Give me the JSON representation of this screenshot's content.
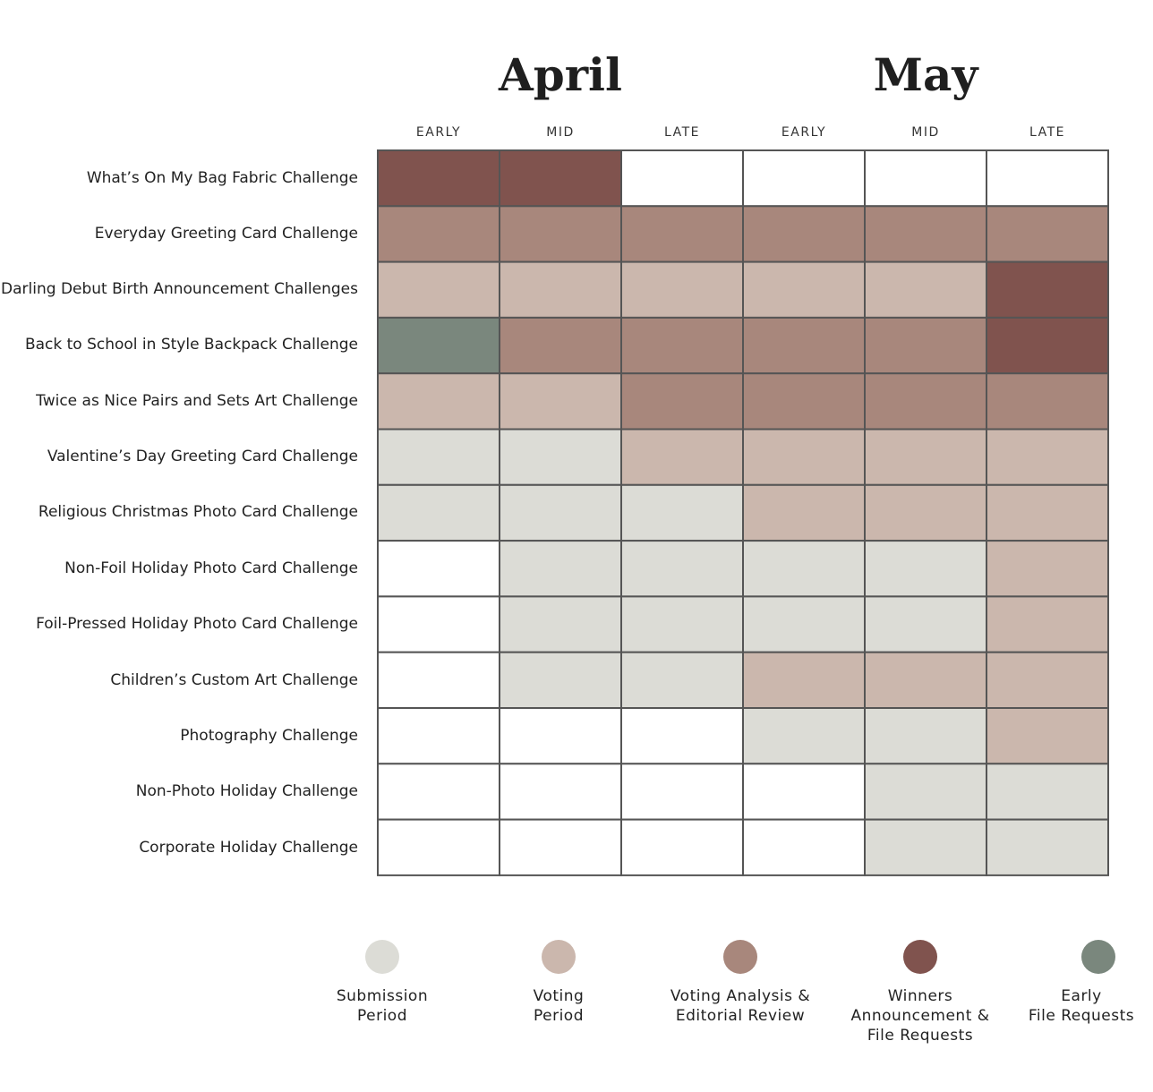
{
  "months": [
    "April",
    "May"
  ],
  "periods": [
    "EARLY",
    "MID",
    "LATE",
    "EARLY",
    "MID",
    "LATE"
  ],
  "colors": {
    "none": "#ffffff",
    "submission": "#dcdcd6",
    "voting": "#cbb7ad",
    "analysis": "#a8877c",
    "winners": "#80534e",
    "early": "#7a877d",
    "gridline": "#555555"
  },
  "chart_data": {
    "type": "heatmap",
    "columns": [
      "April Early",
      "April Mid",
      "April Late",
      "May Early",
      "May Mid",
      "May Late"
    ],
    "rows": [
      {
        "label": "What’s On My Bag Fabric Challenge",
        "states": [
          "winners",
          "winners",
          "none",
          "none",
          "none",
          "none"
        ]
      },
      {
        "label": "Everyday Greeting Card Challenge",
        "states": [
          "analysis",
          "analysis",
          "analysis",
          "analysis",
          "analysis",
          "analysis"
        ]
      },
      {
        "label": "Darling Debut Birth Announcement Challenges",
        "states": [
          "voting",
          "voting",
          "voting",
          "voting",
          "voting",
          "winners"
        ]
      },
      {
        "label": "Back to School in Style Backpack Challenge",
        "states": [
          "early",
          "analysis",
          "analysis",
          "analysis",
          "analysis",
          "winners"
        ]
      },
      {
        "label": "Twice as Nice Pairs and Sets Art Challenge",
        "states": [
          "voting",
          "voting",
          "analysis",
          "analysis",
          "analysis",
          "analysis"
        ]
      },
      {
        "label": "Valentine’s Day Greeting Card Challenge",
        "states": [
          "submission",
          "submission",
          "voting",
          "voting",
          "voting",
          "voting"
        ]
      },
      {
        "label": "Religious Christmas Photo Card Challenge",
        "states": [
          "submission",
          "submission",
          "submission",
          "voting",
          "voting",
          "voting"
        ]
      },
      {
        "label": "Non-Foil Holiday Photo Card Challenge",
        "states": [
          "none",
          "submission",
          "submission",
          "submission",
          "submission",
          "voting"
        ]
      },
      {
        "label": "Foil-Pressed Holiday Photo Card Challenge",
        "states": [
          "none",
          "submission",
          "submission",
          "submission",
          "submission",
          "voting"
        ]
      },
      {
        "label": "Children’s Custom Art Challenge",
        "states": [
          "none",
          "submission",
          "submission",
          "voting",
          "voting",
          "voting"
        ]
      },
      {
        "label": "Photography Challenge",
        "states": [
          "none",
          "none",
          "none",
          "submission",
          "submission",
          "voting"
        ]
      },
      {
        "label": "Non-Photo Holiday Challenge",
        "states": [
          "none",
          "none",
          "none",
          "none",
          "submission",
          "submission"
        ]
      },
      {
        "label": "Corporate Holiday Challenge",
        "states": [
          "none",
          "none",
          "none",
          "none",
          "submission",
          "submission"
        ]
      }
    ]
  },
  "legend": [
    {
      "key": "submission",
      "label": "Submission\nPeriod"
    },
    {
      "key": "voting",
      "label": "Voting\nPeriod"
    },
    {
      "key": "analysis",
      "label": "Voting Analysis &\nEditorial Review"
    },
    {
      "key": "winners",
      "label": "Winners\nAnnouncement &\nFile Requests"
    },
    {
      "key": "early",
      "label": "Early\nFile Requests"
    }
  ]
}
